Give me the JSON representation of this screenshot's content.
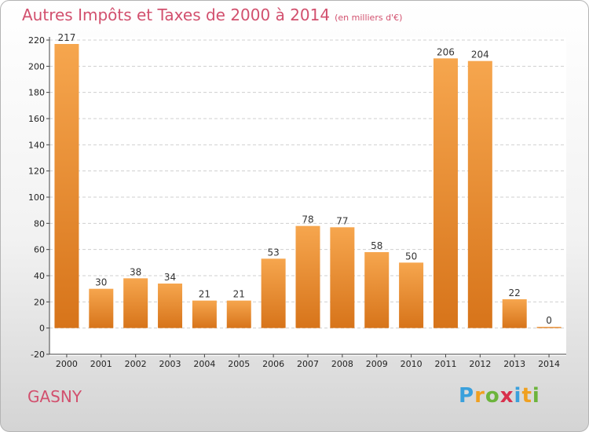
{
  "header": {
    "title": "Autres Impôts et Taxes de 2000 à 2014",
    "unit": "(en milliers d'€)"
  },
  "footer": {
    "place": "GASNY",
    "logo": [
      "P",
      "r",
      "o",
      "x",
      "i",
      "t",
      "i"
    ],
    "logo_colors": [
      "#3aa0dc",
      "#f0a020",
      "#6cb43c",
      "#d8304c",
      "#3aa0dc",
      "#f0a020",
      "#6cb43c"
    ]
  },
  "colors": {
    "bar_light": "#f6a64e",
    "bar_dark": "#d7741a",
    "accent": "#d2506e"
  },
  "chart_data": {
    "type": "bar",
    "categories": [
      "2000",
      "2001",
      "2002",
      "2003",
      "2004",
      "2005",
      "2006",
      "2007",
      "2008",
      "2009",
      "2010",
      "2011",
      "2012",
      "2013",
      "2014"
    ],
    "values": [
      217,
      30,
      38,
      34,
      21,
      21,
      53,
      78,
      77,
      58,
      50,
      206,
      204,
      22,
      0
    ],
    "ylim": [
      -20,
      220
    ],
    "yticks": [
      -20,
      0,
      20,
      40,
      60,
      80,
      100,
      120,
      140,
      160,
      180,
      200,
      220
    ],
    "grid": true,
    "xlabel": "",
    "ylabel": ""
  }
}
